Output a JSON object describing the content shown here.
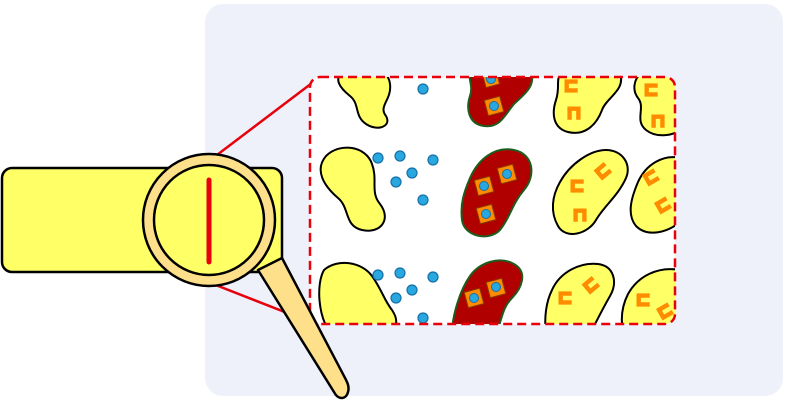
{
  "colors": {
    "background_panel": "#eff1fa",
    "bar_fill": "#ffff66",
    "outline": "#000000",
    "lens_rim": "#ffe08a",
    "handle": "#ffe08a",
    "red_marker": "#e8000b",
    "zoom_lines": "#e8000b",
    "blob_yellow": "#ffff66",
    "blob_red": "#b00000",
    "blob_red_edge": "#1e5c1e",
    "dot_blue": "#29a8e0",
    "dot_blue_edge": "#1670a8",
    "square_orange": "#ff8c00",
    "c_shape": "#ff8c00"
  },
  "icons": {
    "magnifier": "magnifier-icon",
    "zoom_window": "zoom-window"
  }
}
